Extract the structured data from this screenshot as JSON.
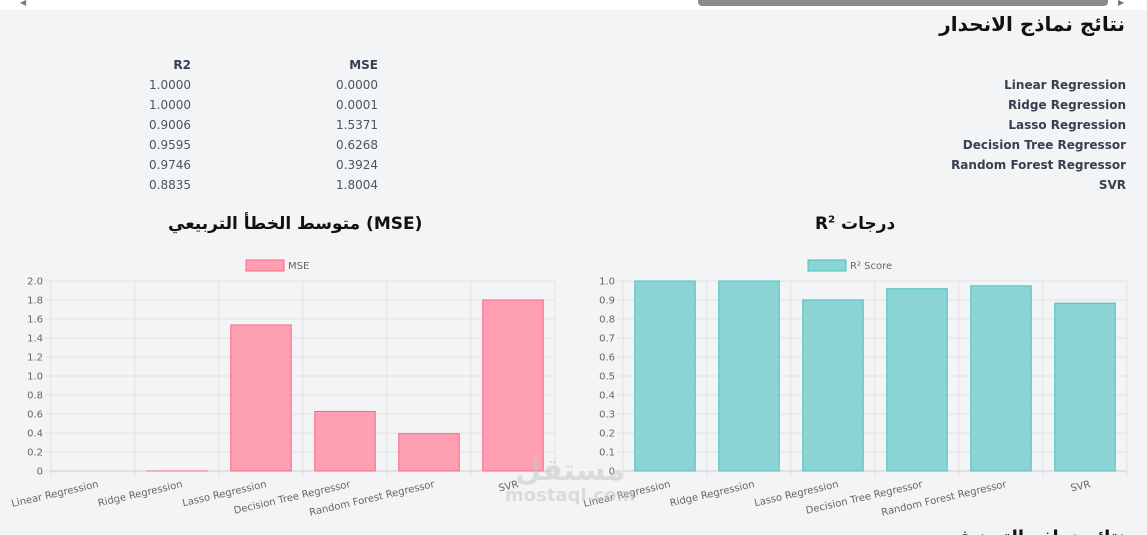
{
  "section_title": "نتائج نماذج الانحدار",
  "table": {
    "headers": {
      "r2": "R2",
      "mse": "MSE"
    },
    "rows": [
      {
        "name": "Linear Regression",
        "r2": "1.0000",
        "mse": "0.0000"
      },
      {
        "name": "Ridge Regression",
        "r2": "1.0000",
        "mse": "0.0001"
      },
      {
        "name": "Lasso Regression",
        "r2": "0.9006",
        "mse": "1.5371"
      },
      {
        "name": "Decision Tree Regressor",
        "r2": "0.9595",
        "mse": "0.6268"
      },
      {
        "name": "Random Forest Regressor",
        "r2": "0.9746",
        "mse": "0.3924"
      },
      {
        "name": "SVR",
        "r2": "0.8835",
        "mse": "1.8004"
      }
    ]
  },
  "chart_titles": {
    "mse": "متوسط الخطأ التربيعي (MSE)",
    "r2_prefix": "درجات",
    "r2_base": "R",
    "r2_sup": "2"
  },
  "chart_data": [
    {
      "type": "bar",
      "title": "متوسط الخطأ التربيعي (MSE)",
      "categories": [
        "Linear Regression",
        "Ridge Regression",
        "Lasso Regression",
        "Decision Tree Regressor",
        "Random Forest Regressor",
        "SVR"
      ],
      "series": [
        {
          "name": "MSE",
          "values": [
            0.0,
            0.0001,
            1.5371,
            0.6268,
            0.3924,
            1.8004
          ]
        }
      ],
      "ylim": [
        0,
        2.0
      ],
      "yticks": [
        "0",
        "0.2",
        "0.4",
        "0.6",
        "0.8",
        "1.0",
        "1.2",
        "1.4",
        "1.6",
        "1.8",
        "2.0"
      ],
      "grid": true,
      "legend_position": "top",
      "colors": {
        "fill": "#ff9fb2",
        "stroke": "#ff6384"
      }
    },
    {
      "type": "bar",
      "title": "درجات R²",
      "categories": [
        "Linear Regression",
        "Ridge Regression",
        "Lasso Regression",
        "Decision Tree Regressor",
        "Random Forest Regressor",
        "SVR"
      ],
      "series": [
        {
          "name": "R² Score",
          "values": [
            1.0,
            1.0,
            0.9006,
            0.9595,
            0.9746,
            0.8835
          ]
        }
      ],
      "ylim": [
        0,
        1.0
      ],
      "yticks": [
        "0",
        "0.1",
        "0.2",
        "0.3",
        "0.4",
        "0.5",
        "0.6",
        "0.7",
        "0.8",
        "0.9",
        "1.0"
      ],
      "grid": true,
      "legend_position": "top",
      "colors": {
        "fill": "#8ad4d4",
        "stroke": "#4bc0c0"
      }
    }
  ],
  "watermark": {
    "arabic": "مستقل",
    "latin": "mostaql.com"
  },
  "bottom_heading": "نتائج نماذج التصنيف"
}
